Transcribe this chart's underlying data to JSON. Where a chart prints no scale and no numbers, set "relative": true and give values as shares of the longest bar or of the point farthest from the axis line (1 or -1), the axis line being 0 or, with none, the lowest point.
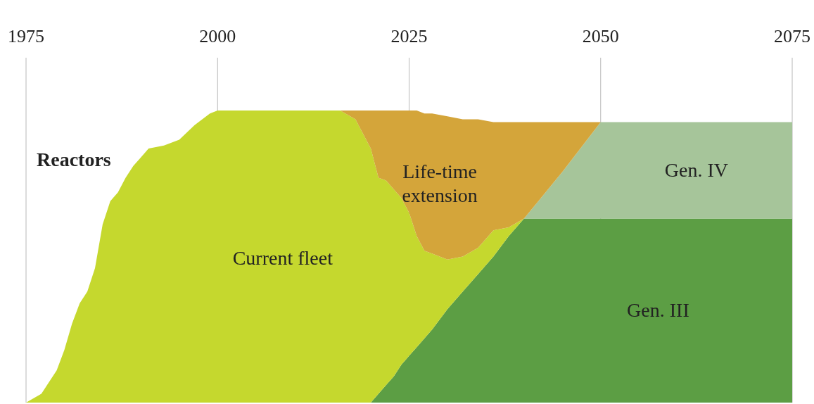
{
  "chart_data": {
    "type": "area",
    "stacked": true,
    "relative": true,
    "ylabel": "Reactors",
    "grid": "x",
    "legend": false,
    "x": [
      1975,
      1977,
      1979,
      1980,
      1981,
      1982,
      1983,
      1984,
      1985,
      1986,
      1987,
      1988,
      1989,
      1990,
      1991,
      1993,
      1995,
      1997,
      1999,
      2000,
      2016,
      2018,
      2020,
      2021,
      2022,
      2023,
      2024,
      2025,
      2026,
      2027,
      2028,
      2030,
      2032,
      2034,
      2036,
      2038,
      2040,
      2045,
      2050,
      2075
    ],
    "xlim": [
      1975,
      2075
    ],
    "xticks": [
      1975,
      2000,
      2025,
      2050,
      2075
    ],
    "series": [
      {
        "name": "Gen. III",
        "color": "#5c9e44",
        "values": [
          null,
          null,
          null,
          null,
          null,
          null,
          null,
          null,
          null,
          null,
          null,
          null,
          null,
          null,
          null,
          null,
          null,
          null,
          null,
          null,
          null,
          null,
          0,
          0.03,
          0.06,
          0.09,
          0.13,
          0.16,
          0.19,
          0.22,
          0.25,
          0.32,
          0.38,
          0.44,
          0.5,
          0.57,
          0.63,
          0.63,
          0.63,
          0.63
        ]
      },
      {
        "name": "Current fleet",
        "color": "#c5d82e",
        "values": [
          0,
          0.03,
          0.11,
          0.18,
          0.27,
          0.34,
          0.38,
          0.46,
          0.61,
          0.69,
          0.72,
          0.77,
          0.81,
          0.84,
          0.87,
          0.88,
          0.9,
          0.95,
          0.99,
          1,
          1,
          0.97,
          0.87,
          0.74,
          0.7,
          0.64,
          0.57,
          0.49,
          0.38,
          0.3,
          0.26,
          0.17,
          0.12,
          0.09,
          0.09,
          0.03,
          0,
          null,
          null,
          null
        ]
      },
      {
        "name": "Gen. IV",
        "color": "#a6c59a",
        "values": [
          null,
          null,
          null,
          null,
          null,
          null,
          null,
          null,
          null,
          null,
          null,
          null,
          null,
          null,
          null,
          null,
          null,
          null,
          null,
          null,
          null,
          null,
          null,
          null,
          null,
          null,
          null,
          null,
          null,
          null,
          null,
          null,
          null,
          null,
          null,
          null,
          0,
          0.16,
          0.33,
          0.33
        ]
      },
      {
        "name": "Life-time extension",
        "color": "#d4a53a",
        "values": [
          null,
          null,
          null,
          null,
          null,
          null,
          null,
          null,
          null,
          null,
          0,
          0,
          0,
          0,
          0,
          0,
          0,
          0,
          0,
          0,
          0,
          0.03,
          0.13,
          0.23,
          0.24,
          0.27,
          0.3,
          0.35,
          0.43,
          0.47,
          0.48,
          0.49,
          0.47,
          0.44,
          0.37,
          0.36,
          0.33,
          0.17,
          0,
          null
        ]
      }
    ]
  }
}
